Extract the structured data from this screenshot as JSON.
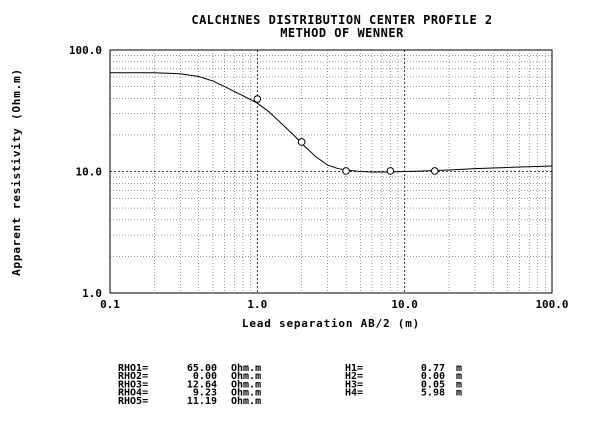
{
  "chart_data": {
    "type": "line",
    "title": "CALCHINES DISTRIBUTION CENTER PROFILE 2",
    "subtitle": "METHOD OF WENNER",
    "xlabel": "Lead separation AB/2 (m)",
    "ylabel": "Apparent resistivity (Ohm.m)",
    "xscale": "log",
    "yscale": "log",
    "xlim": [
      0.1,
      100.0
    ],
    "ylim": [
      1.0,
      100.0
    ],
    "grid": true,
    "xtick_labels": [
      "0.1",
      "1.0",
      "10.0",
      "100.0"
    ],
    "ytick_labels": [
      "1.0",
      "10.0",
      "100.0"
    ],
    "series": [
      {
        "kind": "model-curve",
        "x": [
          0.1,
          0.2,
          0.3,
          0.4,
          0.5,
          0.6,
          0.7,
          0.8,
          0.9,
          1.0,
          1.2,
          1.5,
          1.8,
          2.0,
          2.5,
          3.0,
          3.5,
          4.0,
          5.0,
          6.0,
          7.0,
          8.0,
          10.0,
          12.0,
          16.0,
          20.0,
          30.0,
          50.0,
          100.0
        ],
        "y": [
          65.0,
          64.9,
          63.8,
          60.5,
          55.5,
          50.0,
          45.5,
          42.0,
          39.0,
          36.5,
          31.0,
          24.0,
          19.5,
          17.0,
          13.2,
          11.3,
          10.6,
          10.3,
          10.0,
          9.9,
          9.9,
          9.9,
          10.0,
          10.05,
          10.2,
          10.3,
          10.55,
          10.8,
          11.1
        ]
      },
      {
        "kind": "measured",
        "marker": "circle",
        "x": [
          1.0,
          2.0,
          4.0,
          8.0,
          16.0
        ],
        "y": [
          39.5,
          17.5,
          10.1,
          10.1,
          10.1
        ]
      }
    ]
  },
  "params": {
    "rho": [
      {
        "label": "RHO1=",
        "value": "65.00",
        "unit": "Ohm.m"
      },
      {
        "label": "RHO2=",
        "value": "0.00",
        "unit": "Ohm.m"
      },
      {
        "label": "RHO3=",
        "value": "12.64",
        "unit": "Ohm.m"
      },
      {
        "label": "RHO4=",
        "value": "9.23",
        "unit": "Ohm.m"
      },
      {
        "label": "RHO5=",
        "value": "11.19",
        "unit": "Ohm.m"
      }
    ],
    "h": [
      {
        "label": "H1=",
        "value": "0.77",
        "unit": "m"
      },
      {
        "label": "H2=",
        "value": "0.00",
        "unit": "m"
      },
      {
        "label": "H3=",
        "value": "0.05",
        "unit": "m"
      },
      {
        "label": "H4=",
        "value": "5.98",
        "unit": "m"
      }
    ]
  }
}
